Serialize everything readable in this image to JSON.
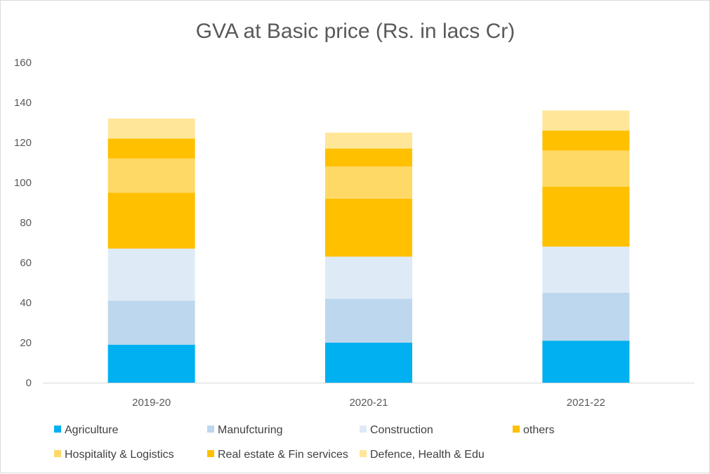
{
  "chart_data": {
    "type": "bar",
    "stacked": true,
    "title": "GVA at Basic price (Rs. in lacs Cr)",
    "xlabel": "",
    "ylabel": "",
    "ylim": [
      0,
      160
    ],
    "yticks": [
      0,
      20,
      40,
      60,
      80,
      100,
      120,
      140,
      160
    ],
    "grid": false,
    "legend_position": "bottom",
    "categories": [
      "2019-20",
      "2020-21",
      "2021-22"
    ],
    "series": [
      {
        "name": "Agriculture",
        "color": "#00b0f0",
        "values": [
          19,
          20,
          21
        ]
      },
      {
        "name": "Manufcturing",
        "color": "#bdd7ee",
        "values": [
          22,
          22,
          24
        ]
      },
      {
        "name": "Construction",
        "color": "#deebf7",
        "values": [
          26,
          21,
          23
        ]
      },
      {
        "name": "Real estate &  Fin services",
        "color": "#ffc000",
        "values": [
          28,
          29,
          30
        ]
      },
      {
        "name": "Hospitality & Logistics",
        "color": "#ffd966",
        "values": [
          17,
          16,
          18
        ]
      },
      {
        "name": "others",
        "color": "#ffc000",
        "values": [
          10,
          9,
          10
        ]
      },
      {
        "name": "Defence, Health & Edu",
        "color": "#ffe699",
        "values": [
          10,
          8,
          10
        ]
      }
    ],
    "legend_order": [
      "Agriculture",
      "Manufcturing",
      "Construction",
      "others",
      "Hospitality & Logistics",
      "Real estate &  Fin services",
      "Defence, Health & Edu"
    ]
  }
}
